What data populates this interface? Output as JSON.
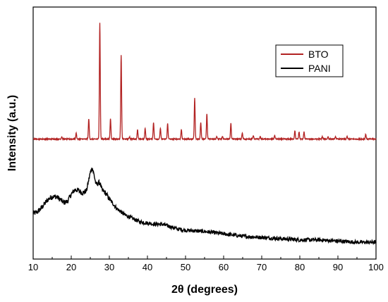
{
  "chart_data": {
    "type": "line",
    "xlabel": "2θ (degrees)",
    "ylabel": "Intensity (a.u.)",
    "xlim": [
      10,
      100
    ],
    "x_ticks": [
      "10",
      "20",
      "30",
      "40",
      "50",
      "60",
      "70",
      "80",
      "90",
      "100"
    ],
    "y_ticks_labeled": false,
    "grid": false,
    "legend_position": "top-right",
    "series": [
      {
        "name": "BTO",
        "color": "#b22222",
        "baseline": 100,
        "peaks": [
          {
            "x": 17.5,
            "y": 102
          },
          {
            "x": 21.3,
            "y": 105
          },
          {
            "x": 24.6,
            "y": 117
          },
          {
            "x": 27.5,
            "y": 197
          },
          {
            "x": 30.3,
            "y": 117
          },
          {
            "x": 33.1,
            "y": 170
          },
          {
            "x": 35.3,
            "y": 102
          },
          {
            "x": 37.4,
            "y": 108
          },
          {
            "x": 39.4,
            "y": 109
          },
          {
            "x": 41.6,
            "y": 114
          },
          {
            "x": 43.4,
            "y": 109
          },
          {
            "x": 45.3,
            "y": 113
          },
          {
            "x": 48.9,
            "y": 108
          },
          {
            "x": 52.4,
            "y": 134
          },
          {
            "x": 54.0,
            "y": 114
          },
          {
            "x": 55.6,
            "y": 121
          },
          {
            "x": 58.2,
            "y": 102
          },
          {
            "x": 59.7,
            "y": 102
          },
          {
            "x": 61.9,
            "y": 113
          },
          {
            "x": 64.9,
            "y": 105
          },
          {
            "x": 67.8,
            "y": 103
          },
          {
            "x": 69.6,
            "y": 102
          },
          {
            "x": 73.4,
            "y": 103
          },
          {
            "x": 78.7,
            "y": 107
          },
          {
            "x": 79.8,
            "y": 106
          },
          {
            "x": 81.1,
            "y": 106
          },
          {
            "x": 85.9,
            "y": 102
          },
          {
            "x": 87.4,
            "y": 102
          },
          {
            "x": 89.4,
            "y": 102
          },
          {
            "x": 92.4,
            "y": 102
          },
          {
            "x": 97.3,
            "y": 104
          }
        ]
      },
      {
        "name": "PANI",
        "color": "#000000",
        "points": [
          [
            10,
            38
          ],
          [
            11,
            39
          ],
          [
            12,
            42
          ],
          [
            13,
            46
          ],
          [
            14,
            50
          ],
          [
            15,
            52
          ],
          [
            16,
            52
          ],
          [
            17,
            50
          ],
          [
            18,
            47
          ],
          [
            19,
            48
          ],
          [
            20,
            54
          ],
          [
            21,
            58
          ],
          [
            22,
            57
          ],
          [
            23,
            55
          ],
          [
            24,
            57
          ],
          [
            25,
            72
          ],
          [
            25.5,
            76
          ],
          [
            26,
            70
          ],
          [
            26.5,
            62
          ],
          [
            27,
            63
          ],
          [
            27.5,
            64
          ],
          [
            28,
            58
          ],
          [
            29,
            55
          ],
          [
            30,
            50
          ],
          [
            31,
            46
          ],
          [
            32,
            42
          ],
          [
            34,
            37
          ],
          [
            36,
            34
          ],
          [
            38,
            31
          ],
          [
            40,
            30
          ],
          [
            42,
            29
          ],
          [
            44,
            29
          ],
          [
            46,
            27
          ],
          [
            48,
            25
          ],
          [
            50,
            24
          ],
          [
            55,
            23
          ],
          [
            60,
            21
          ],
          [
            65,
            19
          ],
          [
            70,
            18
          ],
          [
            75,
            17
          ],
          [
            80,
            16
          ],
          [
            85,
            16
          ],
          [
            90,
            15
          ],
          [
            95,
            14
          ],
          [
            100,
            14
          ]
        ]
      }
    ]
  }
}
